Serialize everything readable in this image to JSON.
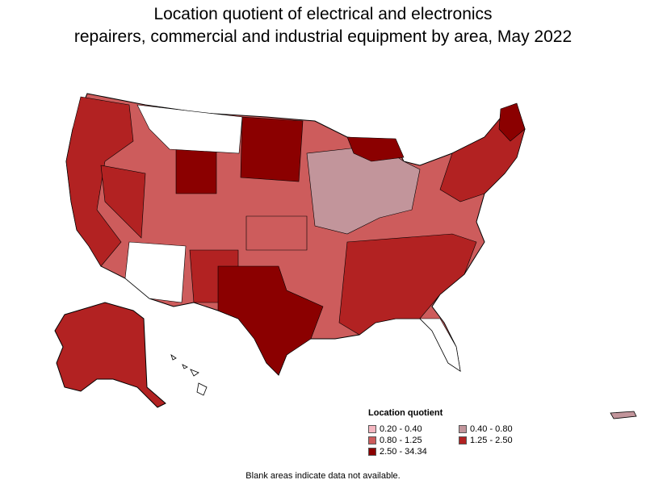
{
  "title_lines": [
    "Location quotient of electrical and electronics",
    "repairers, commercial and industrial equipment by area, May 2022"
  ],
  "legend": {
    "title": "Location quotient",
    "items": [
      {
        "label": "0.20 - 0.40",
        "color": "#f4b6c0"
      },
      {
        "label": "0.40 - 0.80",
        "color": "#c2959b"
      },
      {
        "label": "0.80 - 1.25",
        "color": "#cd5c5c"
      },
      {
        "label": "1.25 - 2.50",
        "color": "#b22222"
      },
      {
        "label": "2.50 - 34.34",
        "color": "#8b0000"
      }
    ]
  },
  "footnote": "Blank areas indicate data not available.",
  "colors": {
    "no_data": "#ffffff",
    "border": "#000000"
  }
}
